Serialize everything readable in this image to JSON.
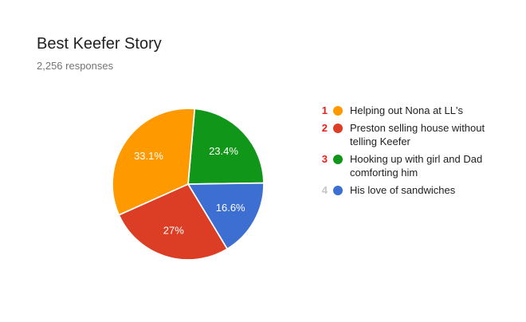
{
  "header": {
    "title": "Best Keefer Story",
    "responses": "2,256 responses"
  },
  "chart_data": {
    "type": "pie",
    "title": "Best Keefer Story",
    "subtitle": "2,256 responses",
    "categories": [
      "Helping out Nona at LL's",
      "Preston selling house without telling Keefer",
      "Hooking up with girl and Dad comforting him",
      "His love of sandwiches"
    ],
    "values": [
      33.1,
      27,
      23.4,
      16.6
    ],
    "slice_labels": [
      "33.1%",
      "27%",
      "23.4%",
      "16.6%"
    ],
    "colors": [
      "#FF9900",
      "#DB3E24",
      "#109618",
      "#3C6FD1"
    ],
    "slice_label_color": "#ffffff",
    "start_angle_deg": 5,
    "clockwise_draw_order": [
      2,
      3,
      1,
      0
    ],
    "legend_position": "right",
    "separator_color": "#ffffff"
  },
  "legend": {
    "items": [
      {
        "rank": "1",
        "rank_color": "#E62117",
        "color": "#FF9900",
        "label": "Helping out Nona at LL's"
      },
      {
        "rank": "2",
        "rank_color": "#E62117",
        "color": "#DB3E24",
        "label": "Preston selling house without telling Keefer"
      },
      {
        "rank": "3",
        "rank_color": "#E62117",
        "color": "#109618",
        "label": "Hooking up with girl and Dad comforting him"
      },
      {
        "rank": "4",
        "rank_color": "#C6C6C6",
        "color": "#3C6FD1",
        "label": "His love of sandwiches"
      }
    ]
  }
}
